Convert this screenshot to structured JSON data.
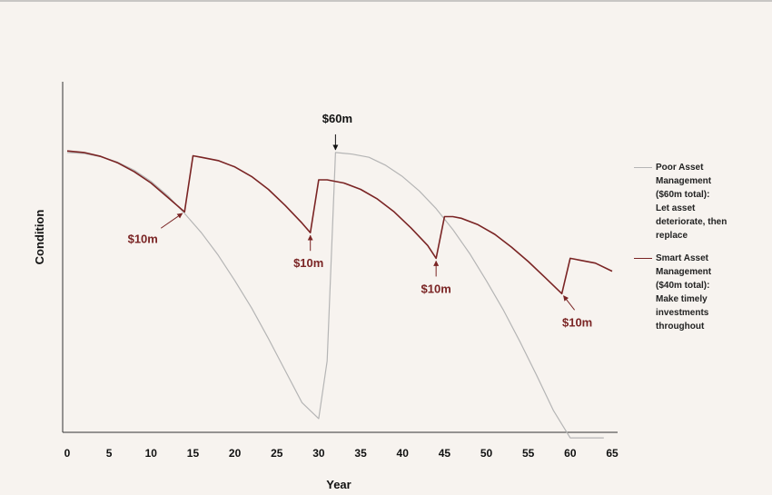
{
  "chart_data": {
    "type": "line",
    "title": "",
    "xlabel": "Year",
    "ylabel": "Condition",
    "xlim": [
      0,
      65
    ],
    "ylim": [
      0,
      100
    ],
    "xticks": [
      "0",
      "5",
      "10",
      "15",
      "20",
      "25",
      "30",
      "35",
      "40",
      "45",
      "50",
      "55",
      "60",
      "65"
    ],
    "grid": false,
    "legend_position": "right",
    "series": [
      {
        "name": "Poor Asset Management ($60m total): Let asset deteriorate, then replace",
        "color": "#b5b5b5",
        "x": [
          0,
          2,
          4,
          6,
          8,
          10,
          12,
          14,
          16,
          18,
          20,
          22,
          24,
          26,
          28,
          30,
          31,
          32,
          34,
          36,
          38,
          40,
          42,
          44,
          46,
          48,
          50,
          52,
          54,
          56,
          58,
          60,
          62,
          63,
          64
        ],
        "y": [
          85,
          84.7,
          83.7,
          82,
          79.5,
          76,
          71.5,
          66,
          60,
          53,
          45,
          36.5,
          27,
          17,
          7,
          2,
          20,
          85,
          84.5,
          83.5,
          81,
          77.5,
          73,
          67.5,
          61,
          53.5,
          45,
          36,
          26,
          15.5,
          4.5,
          -4,
          -4,
          -4,
          -4
        ]
      },
      {
        "name": "Smart Asset Management ($40m total): Make timely investments throughout",
        "color": "#7a2424",
        "x": [
          0,
          2,
          4,
          6,
          8,
          10,
          12,
          14,
          15,
          16,
          18,
          20,
          22,
          24,
          26,
          28,
          29,
          30,
          31,
          33,
          35,
          37,
          39,
          41,
          43,
          44,
          45,
          46,
          47,
          49,
          51,
          53,
          55,
          57,
          59,
          60,
          61,
          63,
          65
        ],
        "y": [
          85.5,
          85,
          83.8,
          81.8,
          79,
          75.5,
          71,
          66.5,
          84,
          83.5,
          82.5,
          80.5,
          77.5,
          73.5,
          68.5,
          63,
          60,
          76.5,
          76.5,
          75.5,
          73.5,
          70.5,
          66.5,
          61.5,
          56,
          52,
          65,
          65,
          64.5,
          62.5,
          59.5,
          55.5,
          51,
          46,
          41,
          52,
          51.5,
          50.5,
          48
        ]
      }
    ],
    "annotations": [
      {
        "text": "$10m",
        "x": 14,
        "y": 66.5,
        "color": "#7a2424"
      },
      {
        "text": "$10m",
        "x": 29,
        "y": 60,
        "color": "#7a2424"
      },
      {
        "text": "$10m",
        "x": 44,
        "y": 52,
        "color": "#7a2424"
      },
      {
        "text": "$10m",
        "x": 59,
        "y": 41,
        "color": "#7a2424"
      },
      {
        "text": "$60m",
        "x": 32,
        "y": 85,
        "color": "#111111"
      }
    ]
  },
  "legend": [
    {
      "lines": [
        "Poor Asset",
        "Management",
        "($60m total):",
        "Let asset",
        "deteriorate, then",
        "replace"
      ]
    },
    {
      "lines": [
        "Smart Asset",
        "Management",
        "($40m total):",
        "Make timely",
        "investments",
        "throughout"
      ]
    }
  ]
}
